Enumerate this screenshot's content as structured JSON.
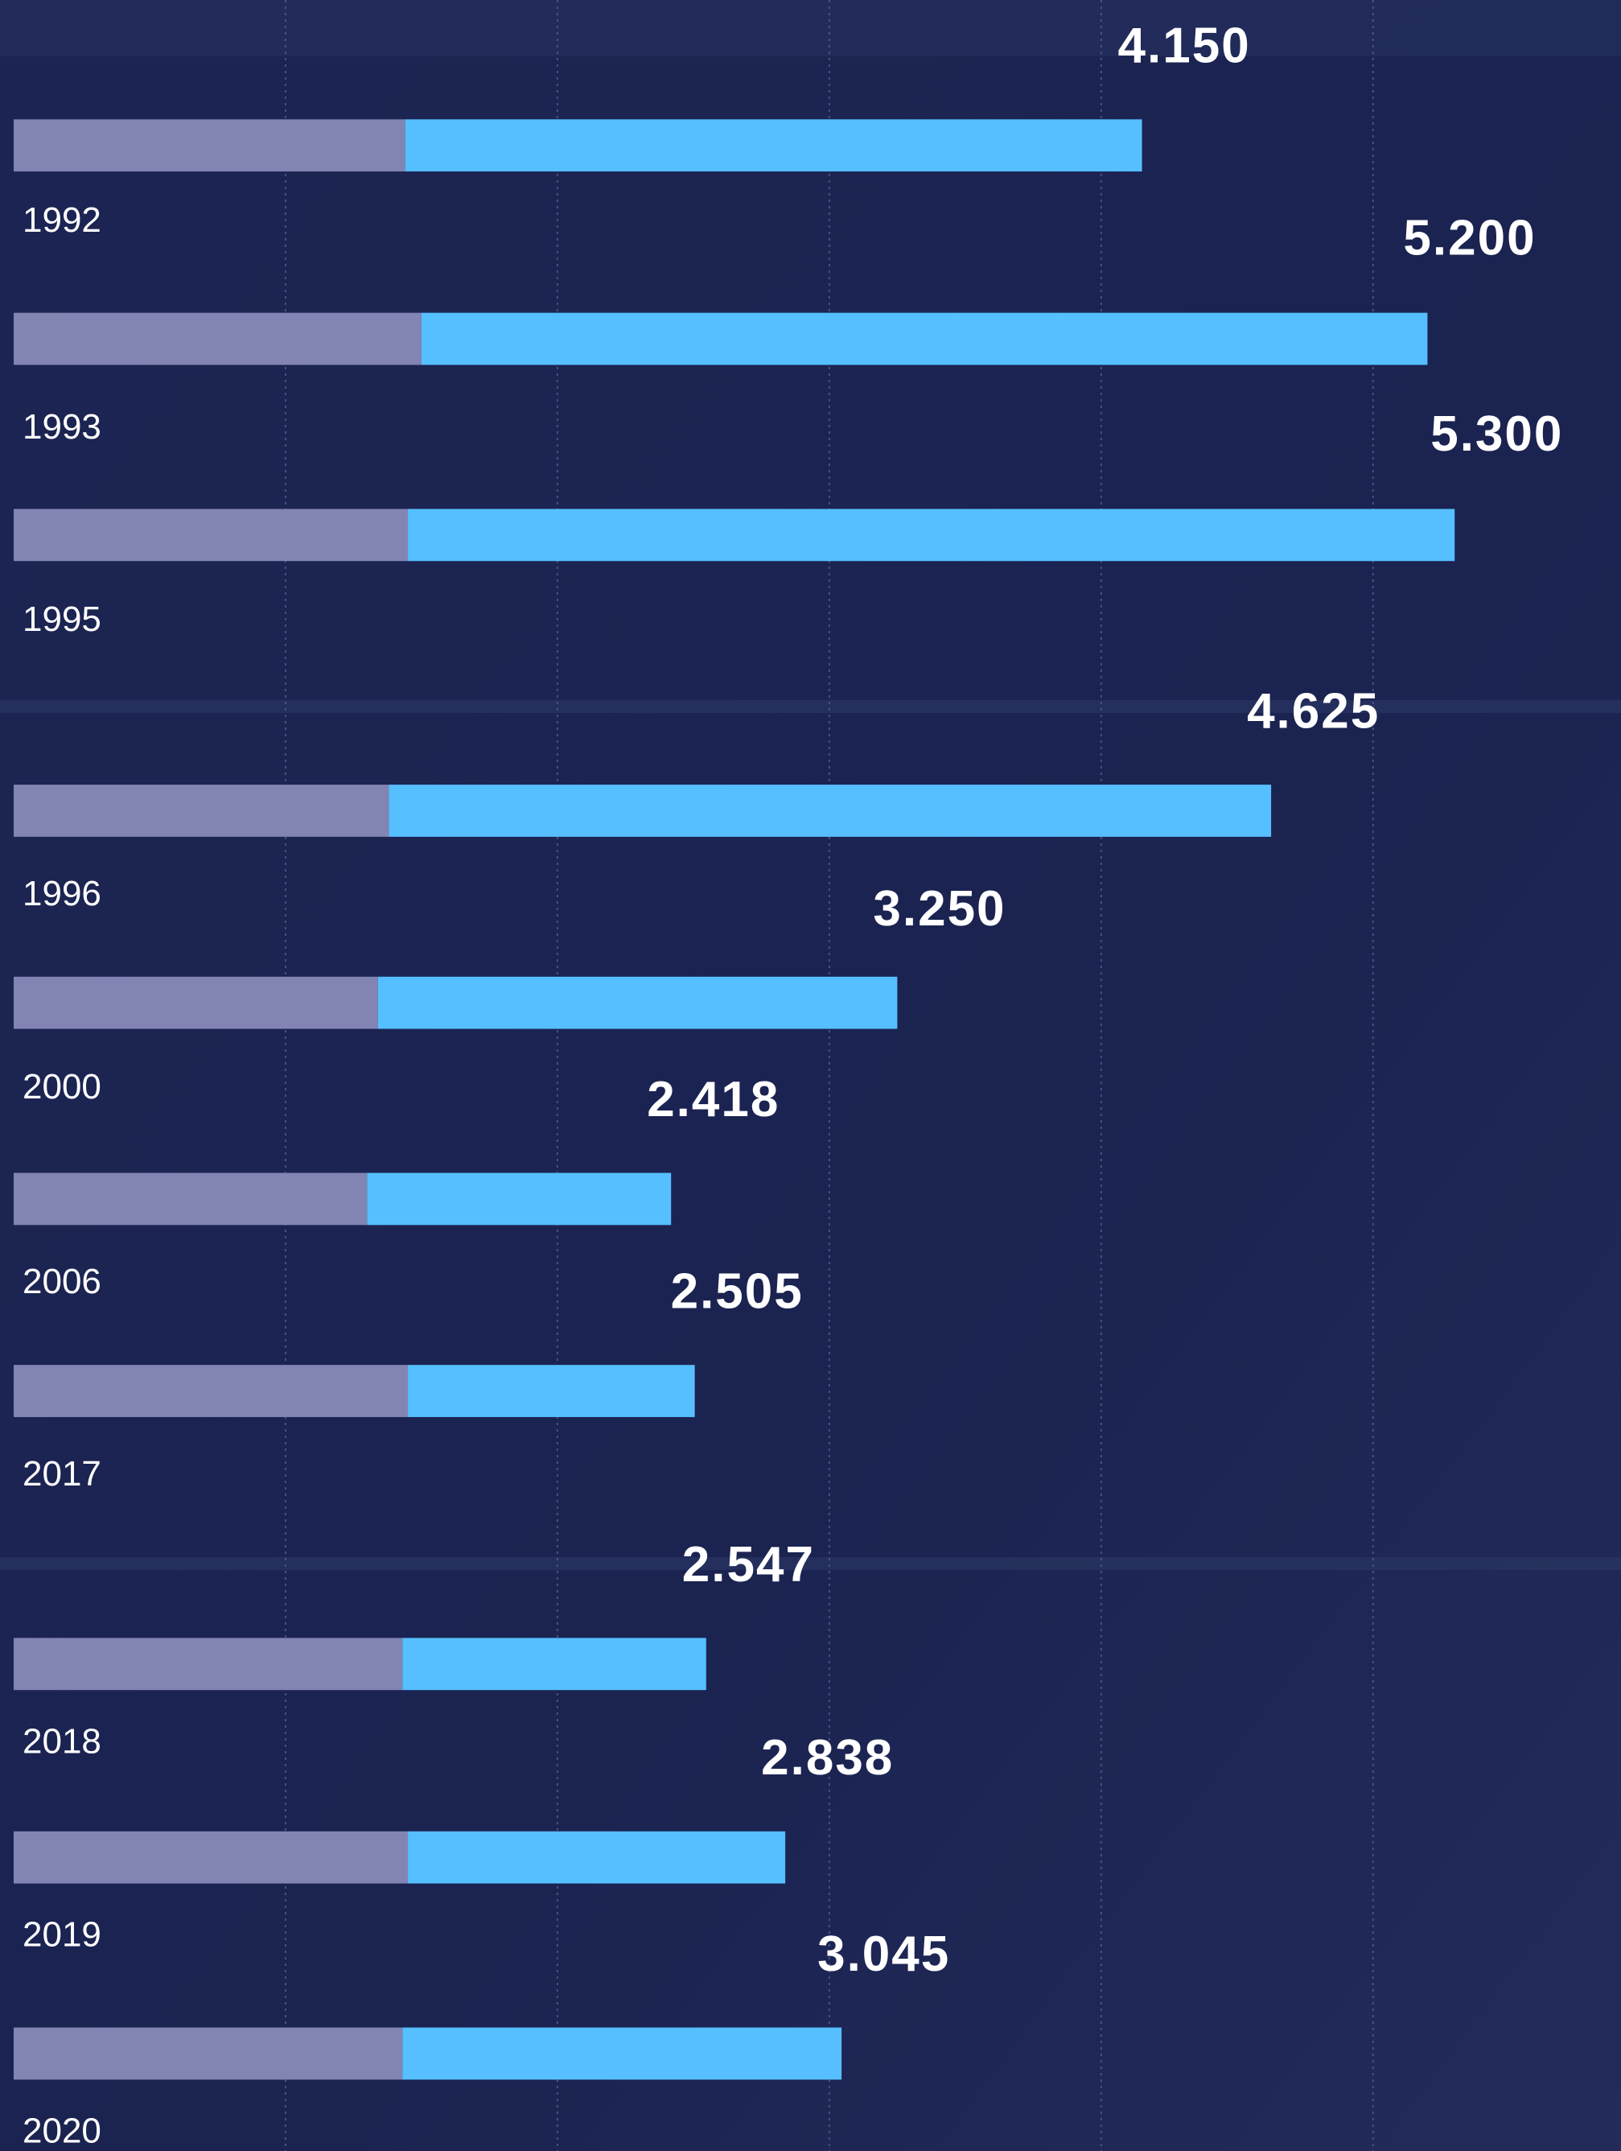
{
  "chart_data": {
    "type": "bar",
    "categories": [
      "1992",
      "1993",
      "1995",
      "1996",
      "2000",
      "2006",
      "2017",
      "2018",
      "2019",
      "2020"
    ],
    "values": [
      4.15,
      5.2,
      5.3,
      4.625,
      3.25,
      2.418,
      2.505,
      2.547,
      2.838,
      3.045
    ],
    "value_labels": [
      "4.150",
      "5.200",
      "5.300",
      "4.625",
      "3.250",
      "2.418",
      "2.505",
      "2.547",
      "2.838",
      "3.045"
    ],
    "base_values": [
      1.44,
      1.5,
      1.45,
      1.38,
      1.34,
      1.3,
      1.45,
      1.43,
      1.45,
      1.43
    ],
    "color": "#56bfff",
    "base_color": "#8285b3",
    "xlim": [
      0,
      5.9
    ],
    "xticks": [
      1,
      2,
      3,
      4,
      5
    ],
    "grid": true
  }
}
